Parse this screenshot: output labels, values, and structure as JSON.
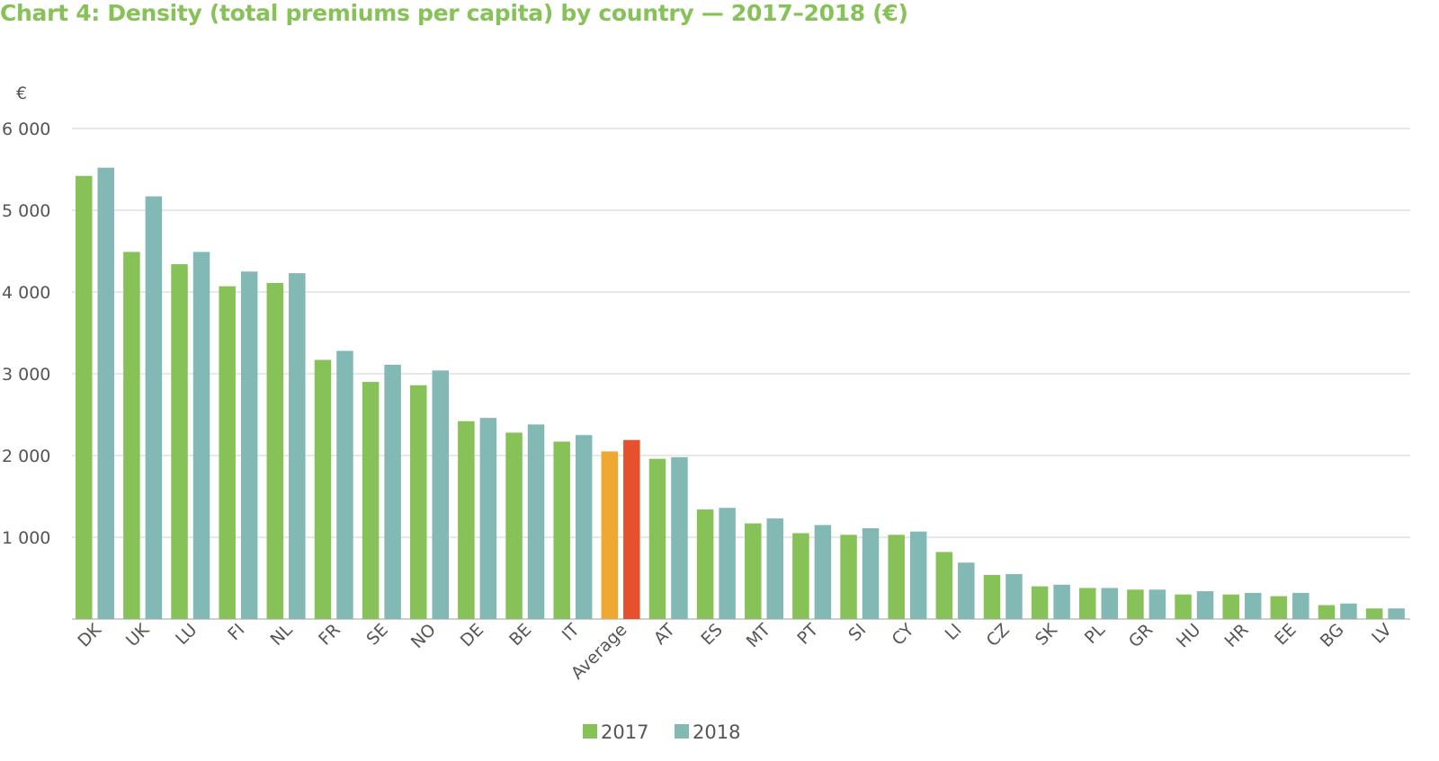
{
  "chart_data": {
    "type": "bar",
    "title": "Chart 4: Density (total premiums per capita) by country — 2017–2018 (€)",
    "unit_label": "€",
    "xlabel": "",
    "ylabel": "",
    "ylim": [
      0,
      6000
    ],
    "y_ticks": [
      {
        "value": 1000,
        "label": "1 000"
      },
      {
        "value": 2000,
        "label": "2 000"
      },
      {
        "value": 3000,
        "label": "3 000"
      },
      {
        "value": 4000,
        "label": "4 000"
      },
      {
        "value": 5000,
        "label": "5 000"
      },
      {
        "value": 6000,
        "label": "6 000"
      }
    ],
    "grid": true,
    "legend_position": "bottom-center",
    "categories": [
      "DK",
      "UK",
      "LU",
      "FI",
      "NL",
      "FR",
      "SE",
      "NO",
      "DE",
      "BE",
      "IT",
      "Average",
      "AT",
      "ES",
      "MT",
      "PT",
      "SI",
      "CY",
      "LI",
      "CZ",
      "SK",
      "PL",
      "GR",
      "HU",
      "HR",
      "EE",
      "BG",
      "LV"
    ],
    "highlight_category": "Average",
    "series": [
      {
        "name": "2017",
        "color": "#86c257",
        "highlight_color": "#f0a830",
        "values": [
          5420,
          4490,
          4340,
          4070,
          4110,
          3170,
          2900,
          2860,
          2420,
          2280,
          2170,
          2050,
          1960,
          1340,
          1170,
          1050,
          1030,
          1030,
          820,
          540,
          400,
          380,
          360,
          300,
          300,
          280,
          170,
          130
        ]
      },
      {
        "name": "2018",
        "color": "#82b9b5",
        "highlight_color": "#e5502d",
        "values": [
          5520,
          5170,
          4490,
          4250,
          4230,
          3280,
          3110,
          3040,
          2460,
          2380,
          2250,
          2190,
          1980,
          1360,
          1230,
          1150,
          1110,
          1070,
          690,
          550,
          420,
          380,
          360,
          340,
          320,
          320,
          190,
          130
        ]
      }
    ]
  }
}
